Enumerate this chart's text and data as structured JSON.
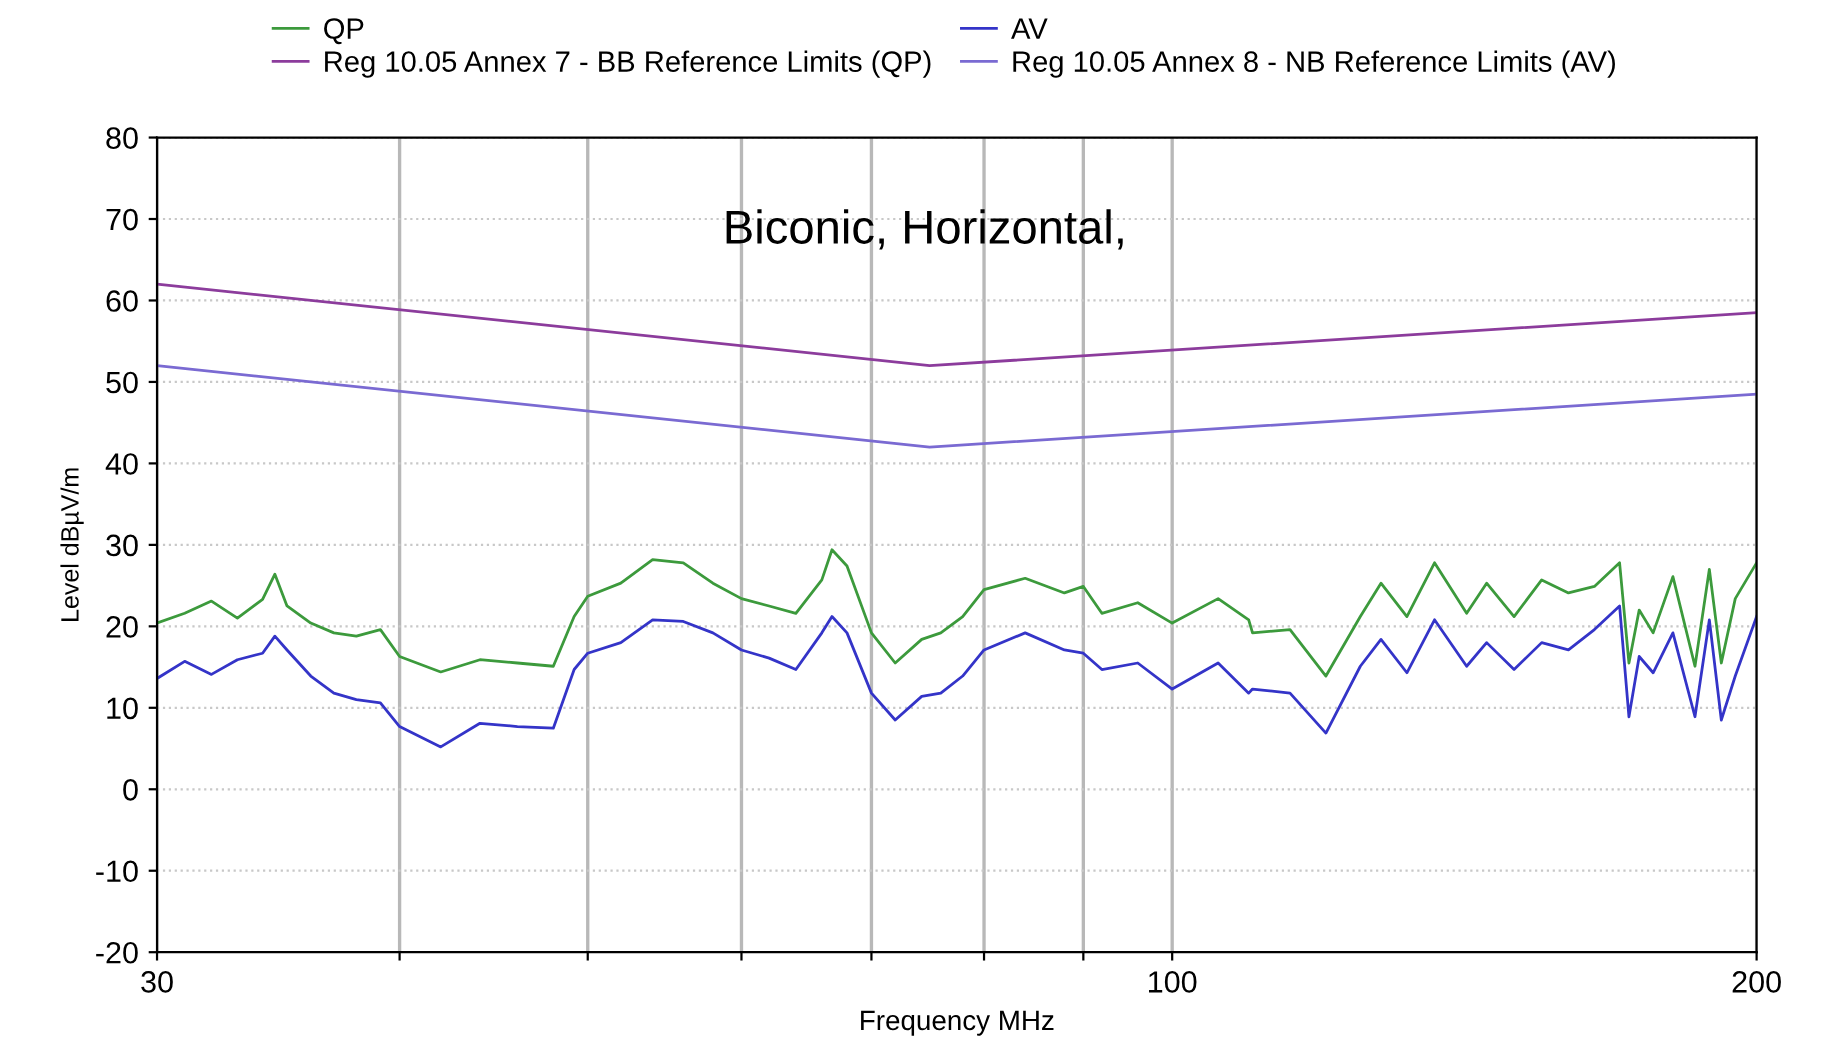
{
  "chart_data": {
    "type": "line",
    "xlabel": "Frequency MHz",
    "ylabel": "Level dBµV/m",
    "log": "x",
    "grid": true,
    "legend": "top",
    "marker": "none",
    "line_style": "solid",
    "annotations": [
      "Biconic, Horizontal,"
    ],
    "xlim": [
      30,
      200
    ],
    "xticks": [
      30,
      {
        "value": 40,
        "label": null
      },
      {
        "value": 50,
        "label": null
      },
      {
        "value": 60,
        "label": null
      },
      {
        "value": 70,
        "label": null
      },
      {
        "value": 80,
        "label": null
      },
      {
        "value": 90,
        "label": null
      },
      100,
      200
    ],
    "ylim": [
      -20,
      80
    ],
    "yticks": [
      -20,
      -10,
      0,
      10,
      20,
      30,
      40,
      50,
      60,
      70,
      80
    ],
    "series": [
      {
        "name": "QP",
        "color": "#3c9a3c",
        "x": [
          30,
          31.0,
          32.0,
          33.0,
          34.0,
          34.5,
          35.0,
          36.0,
          37.0,
          38.0,
          39.1,
          40,
          42,
          44,
          46,
          48,
          49.2,
          50,
          52,
          54,
          56,
          58,
          60,
          62,
          64,
          66,
          66.8,
          68,
          70,
          72,
          74.3,
          76,
          78,
          80,
          84,
          88,
          90,
          92,
          96,
          100,
          105.6,
          109.5,
          110,
          115,
          120,
          125,
          128.1,
          132.1,
          136.5,
          141.8,
          145.2,
          150,
          155,
          160,
          165,
          170,
          171.9,
          174.0,
          176.9,
          181.1,
          185.9,
          189.1,
          191.8,
          195.0,
          200
        ],
        "values": [
          20.4,
          21.6,
          23.1,
          21,
          23.3,
          26.4,
          22.5,
          20.4,
          19.2,
          18.8,
          19.6,
          16.3,
          14.4,
          15.9,
          15.5,
          15.1,
          21.2,
          23.7,
          25.3,
          28.2,
          27.8,
          25.3,
          23.4,
          22.5,
          21.6,
          25.7,
          29.4,
          27.4,
          19.2,
          15.5,
          18.4,
          19.2,
          21.2,
          24.5,
          25.9,
          24.1,
          24.9,
          21.6,
          22.9,
          20.4,
          23.4,
          20.8,
          19.2,
          19.6,
          13.9,
          21.2,
          25.3,
          21.2,
          27.8,
          21.6,
          25.3,
          21.2,
          25.7,
          24.1,
          24.9,
          27.8,
          15.5,
          22,
          19.2,
          26.1,
          15.1,
          27,
          15.5,
          23.4,
          27.8
        ]
      },
      {
        "name": "AV",
        "color": "#3434c8",
        "x": [
          30,
          31.0,
          32.0,
          33.0,
          34.0,
          34.5,
          35.0,
          36.0,
          37.0,
          38.0,
          39.1,
          40,
          42,
          44,
          46,
          48,
          49.2,
          50,
          52,
          54,
          56,
          58,
          60,
          62,
          64,
          66,
          66.8,
          68,
          70,
          72,
          74.3,
          76,
          78,
          80,
          84,
          88,
          90,
          92,
          96,
          100,
          105.6,
          109.5,
          110,
          115,
          120,
          125,
          128.1,
          132.1,
          136.5,
          141.8,
          145.2,
          150,
          155,
          160,
          165,
          170,
          171.9,
          174.0,
          176.9,
          181.1,
          185.9,
          189.1,
          191.8,
          195.0,
          200
        ],
        "values": [
          13.6,
          15.7,
          14.1,
          15.9,
          16.7,
          18.8,
          17.1,
          13.9,
          11.8,
          11,
          10.6,
          7.7,
          5.2,
          8.1,
          7.7,
          7.5,
          14.7,
          16.7,
          18,
          20.8,
          20.6,
          19.2,
          17.1,
          16.1,
          14.7,
          19.2,
          21.2,
          19.2,
          11.8,
          8.5,
          11.4,
          11.8,
          13.9,
          17.1,
          19.2,
          17.1,
          16.7,
          14.7,
          15.5,
          12.3,
          15.5,
          11.8,
          12.3,
          11.8,
          6.9,
          15.1,
          18.4,
          14.3,
          20.8,
          15.1,
          18,
          14.7,
          18,
          17.1,
          19.6,
          22.5,
          8.9,
          16.3,
          14.3,
          19.2,
          8.9,
          20.8,
          8.5,
          13.9,
          21.2
        ]
      },
      {
        "name": "Reg 10.05 Annex 7 - BB Reference Limits (QP)",
        "color": "#8c3c9c",
        "x": [
          30,
          75,
          200
        ],
        "values": [
          62,
          52,
          58.5
        ]
      },
      {
        "name": "Reg 10.05 Annex 8 - NB Reference Limits (AV)",
        "color": "#7a6ad2",
        "x": [
          30,
          75,
          200
        ],
        "values": [
          52,
          42,
          48.5
        ]
      }
    ]
  }
}
